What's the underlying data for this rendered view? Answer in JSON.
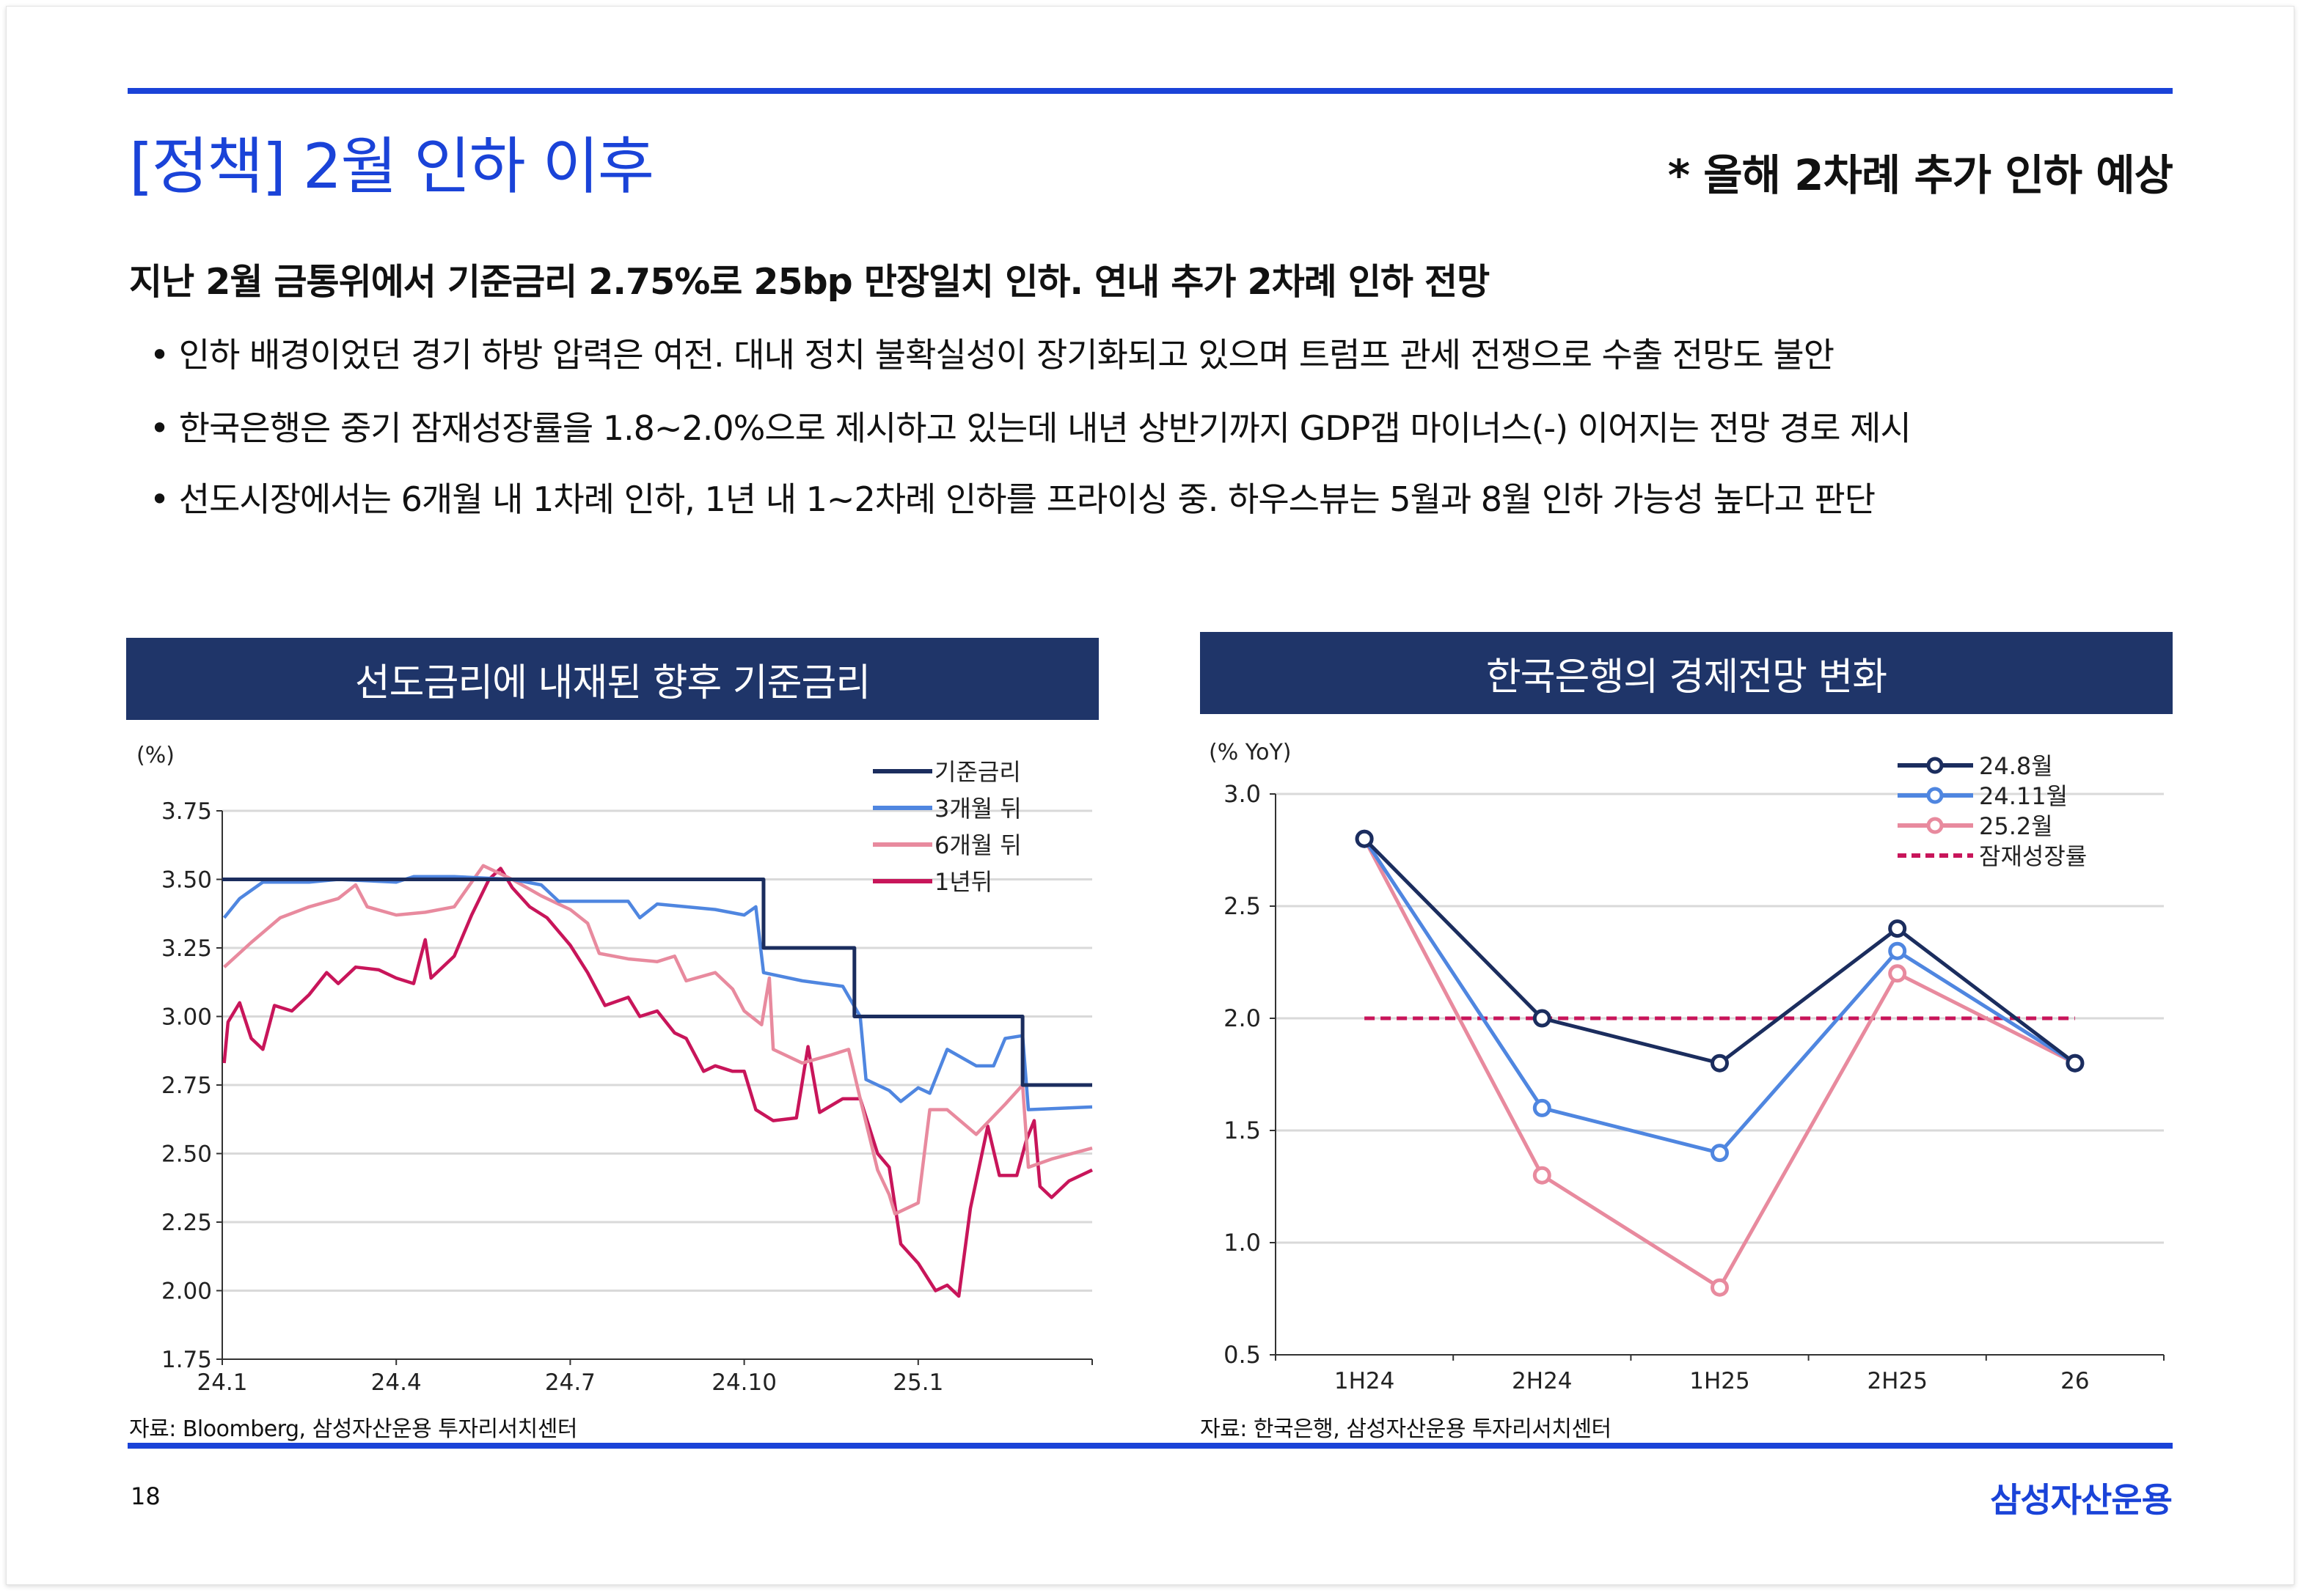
{
  "header": {
    "title": "[정책] 2월 인하 이후",
    "note": "* 올해 2차례 추가 인하 예상"
  },
  "body": {
    "lead": "지난 2월 금통위에서 기준금리 2.75%로 25bp 만장일치 인하. 연내 추가 2차례 인하 전망",
    "bullets": [
      "• 인하 배경이었던 경기 하방 압력은 여전. 대내 정치 불확실성이 장기화되고 있으며 트럼프 관세 전쟁으로 수출 전망도 불안",
      "• 한국은행은 중기 잠재성장률을 1.8~2.0%으로 제시하고 있는데 내년 상반기까지 GDP갭 마이너스(-) 이어지는 전망 경로 제시",
      "• 선도시장에서는 6개월 내 1차례 인하, 1년 내 1~2차례 인하를 프라이싱 중. 하우스뷰는 5월과 8월 인하 가능성 높다고 판단"
    ]
  },
  "footer": {
    "page": "18",
    "brand": "삼성자산운용"
  },
  "colors": {
    "accent": "#1a43d8",
    "header_box": "#1f3569",
    "navy": "#1b2d5e",
    "blue": "#4f86e0",
    "pink": "#e88a9e",
    "crimson": "#c8155a"
  },
  "chart_data": [
    {
      "type": "line",
      "title": "선도금리에 내재된 향후 기준금리",
      "ylabel": "(%)",
      "source": "자료: Bloomberg, 삼성자산운용 투자리서치센터",
      "ylim": [
        1.75,
        3.75
      ],
      "yticks": [
        "3.75",
        "3.50",
        "3.25",
        "3.00",
        "2.75",
        "2.50",
        "2.25",
        "2.00",
        "1.75"
      ],
      "xlim": [
        "2024-01-01",
        "2025-04-01"
      ],
      "xticks": [
        [
          "2024-01-01",
          "24.1"
        ],
        [
          "2024-04-01",
          "24.4"
        ],
        [
          "2024-07-01",
          "24.7"
        ],
        [
          "2024-10-01",
          "24.10"
        ],
        [
          "2025-01-01",
          "25.1"
        ]
      ],
      "grid": true,
      "legend": "top-right",
      "series": [
        {
          "name": "기준금리",
          "color": "#1b2d5e",
          "step": true,
          "points": [
            [
              "2024-01-01",
              3.5
            ],
            [
              "2024-10-11",
              3.25
            ],
            [
              "2024-11-28",
              3.0
            ],
            [
              "2025-02-25",
              2.75
            ],
            [
              "2025-04-01",
              2.75
            ]
          ]
        },
        {
          "name": "3개월 뒤",
          "color": "#4f86e0",
          "points": [
            [
              "2024-01-02",
              3.36
            ],
            [
              "2024-01-10",
              3.43
            ],
            [
              "2024-01-22",
              3.49
            ],
            [
              "2024-02-16",
              3.49
            ],
            [
              "2024-03-01",
              3.5
            ],
            [
              "2024-04-01",
              3.49
            ],
            [
              "2024-04-10",
              3.51
            ],
            [
              "2024-05-01",
              3.51
            ],
            [
              "2024-06-01",
              3.5
            ],
            [
              "2024-06-16",
              3.48
            ],
            [
              "2024-06-25",
              3.42
            ],
            [
              "2024-07-16",
              3.42
            ],
            [
              "2024-08-01",
              3.42
            ],
            [
              "2024-08-07",
              3.36
            ],
            [
              "2024-08-16",
              3.41
            ],
            [
              "2024-09-01",
              3.4
            ],
            [
              "2024-09-16",
              3.39
            ],
            [
              "2024-10-01",
              3.37
            ],
            [
              "2024-10-07",
              3.4
            ],
            [
              "2024-10-11",
              3.16
            ],
            [
              "2024-11-01",
              3.13
            ],
            [
              "2024-11-22",
              3.11
            ],
            [
              "2024-12-01",
              3.0
            ],
            [
              "2024-12-04",
              2.77
            ],
            [
              "2024-12-16",
              2.73
            ],
            [
              "2024-12-22",
              2.69
            ],
            [
              "2025-01-01",
              2.74
            ],
            [
              "2025-01-07",
              2.72
            ],
            [
              "2025-01-16",
              2.88
            ],
            [
              "2025-02-01",
              2.82
            ],
            [
              "2025-02-10",
              2.82
            ],
            [
              "2025-02-16",
              2.92
            ],
            [
              "2025-02-25",
              2.93
            ],
            [
              "2025-02-28",
              2.66
            ],
            [
              "2025-04-01",
              2.67
            ]
          ]
        },
        {
          "name": "6개월 뒤",
          "color": "#e88a9e",
          "points": [
            [
              "2024-01-02",
              3.18
            ],
            [
              "2024-01-16",
              3.27
            ],
            [
              "2024-02-01",
              3.36
            ],
            [
              "2024-02-16",
              3.4
            ],
            [
              "2024-03-01",
              3.43
            ],
            [
              "2024-03-10",
              3.48
            ],
            [
              "2024-03-16",
              3.4
            ],
            [
              "2024-04-01",
              3.37
            ],
            [
              "2024-04-16",
              3.38
            ],
            [
              "2024-05-01",
              3.4
            ],
            [
              "2024-05-16",
              3.55
            ],
            [
              "2024-06-01",
              3.5
            ],
            [
              "2024-06-16",
              3.44
            ],
            [
              "2024-07-01",
              3.39
            ],
            [
              "2024-07-10",
              3.34
            ],
            [
              "2024-07-16",
              3.23
            ],
            [
              "2024-08-01",
              3.21
            ],
            [
              "2024-08-16",
              3.2
            ],
            [
              "2024-08-25",
              3.22
            ],
            [
              "2024-09-01",
              3.13
            ],
            [
              "2024-09-16",
              3.16
            ],
            [
              "2024-09-25",
              3.1
            ],
            [
              "2024-10-01",
              3.02
            ],
            [
              "2024-10-10",
              2.97
            ],
            [
              "2024-10-14",
              3.14
            ],
            [
              "2024-10-16",
              2.88
            ],
            [
              "2024-11-01",
              2.83
            ],
            [
              "2024-11-16",
              2.86
            ],
            [
              "2024-11-25",
              2.88
            ],
            [
              "2024-12-01",
              2.7
            ],
            [
              "2024-12-10",
              2.44
            ],
            [
              "2024-12-16",
              2.35
            ],
            [
              "2024-12-19",
              2.28
            ],
            [
              "2025-01-01",
              2.32
            ],
            [
              "2025-01-07",
              2.66
            ],
            [
              "2025-01-16",
              2.66
            ],
            [
              "2025-02-01",
              2.57
            ],
            [
              "2025-02-16",
              2.68
            ],
            [
              "2025-02-25",
              2.75
            ],
            [
              "2025-02-28",
              2.45
            ],
            [
              "2025-03-10",
              2.48
            ],
            [
              "2025-04-01",
              2.52
            ]
          ]
        },
        {
          "name": "1년뒤",
          "color": "#c8155a",
          "points": [
            [
              "2024-01-02",
              2.83
            ],
            [
              "2024-01-04",
              2.98
            ],
            [
              "2024-01-10",
              3.05
            ],
            [
              "2024-01-16",
              2.92
            ],
            [
              "2024-01-22",
              2.88
            ],
            [
              "2024-01-28",
              3.04
            ],
            [
              "2024-02-07",
              3.02
            ],
            [
              "2024-02-16",
              3.08
            ],
            [
              "2024-02-25",
              3.16
            ],
            [
              "2024-03-01",
              3.12
            ],
            [
              "2024-03-10",
              3.18
            ],
            [
              "2024-03-22",
              3.17
            ],
            [
              "2024-04-01",
              3.14
            ],
            [
              "2024-04-10",
              3.12
            ],
            [
              "2024-04-16",
              3.28
            ],
            [
              "2024-04-19",
              3.14
            ],
            [
              "2024-05-01",
              3.22
            ],
            [
              "2024-05-10",
              3.37
            ],
            [
              "2024-05-19",
              3.5
            ],
            [
              "2024-05-25",
              3.54
            ],
            [
              "2024-06-01",
              3.47
            ],
            [
              "2024-06-10",
              3.4
            ],
            [
              "2024-06-19",
              3.36
            ],
            [
              "2024-07-01",
              3.26
            ],
            [
              "2024-07-10",
              3.16
            ],
            [
              "2024-07-19",
              3.04
            ],
            [
              "2024-08-01",
              3.07
            ],
            [
              "2024-08-07",
              3.0
            ],
            [
              "2024-08-16",
              3.02
            ],
            [
              "2024-08-25",
              2.94
            ],
            [
              "2024-09-01",
              2.92
            ],
            [
              "2024-09-10",
              2.8
            ],
            [
              "2024-09-16",
              2.82
            ],
            [
              "2024-09-25",
              2.8
            ],
            [
              "2024-10-01",
              2.8
            ],
            [
              "2024-10-07",
              2.66
            ],
            [
              "2024-10-16",
              2.62
            ],
            [
              "2024-10-28",
              2.63
            ],
            [
              "2024-11-04",
              2.89
            ],
            [
              "2024-11-10",
              2.65
            ],
            [
              "2024-11-22",
              2.7
            ],
            [
              "2024-12-01",
              2.7
            ],
            [
              "2024-12-10",
              2.5
            ],
            [
              "2024-12-16",
              2.45
            ],
            [
              "2024-12-22",
              2.17
            ],
            [
              "2025-01-01",
              2.1
            ],
            [
              "2025-01-10",
              2.0
            ],
            [
              "2025-01-16",
              2.02
            ],
            [
              "2025-01-22",
              1.98
            ],
            [
              "2025-01-28",
              2.3
            ],
            [
              "2025-02-07",
              2.6
            ],
            [
              "2025-02-13",
              2.42
            ],
            [
              "2025-02-22",
              2.42
            ],
            [
              "2025-02-27",
              2.55
            ],
            [
              "2025-03-01",
              2.62
            ],
            [
              "2025-03-04",
              2.38
            ],
            [
              "2025-03-10",
              2.34
            ],
            [
              "2025-03-19",
              2.4
            ],
            [
              "2025-04-01",
              2.44
            ]
          ]
        }
      ]
    },
    {
      "type": "line",
      "title": "한국은행의 경제전망 변화",
      "ylabel": "(% YoY)",
      "source": "자료: 한국은행, 삼성자산운용 투자리서치센터",
      "ylim": [
        0.5,
        3.0
      ],
      "yticks": [
        "3.0",
        "2.5",
        "2.0",
        "1.5",
        "1.0",
        "0.5"
      ],
      "categories": [
        "1H24",
        "2H24",
        "1H25",
        "2H25",
        "26"
      ],
      "grid": true,
      "legend": "top-right",
      "series": [
        {
          "name": "24.8월",
          "color": "#1b2d5e",
          "values": [
            2.8,
            2.0,
            1.8,
            2.4,
            1.8
          ]
        },
        {
          "name": "24.11월",
          "color": "#4f86e0",
          "values": [
            2.8,
            1.6,
            1.4,
            2.3,
            1.8
          ]
        },
        {
          "name": "25.2월",
          "color": "#e88a9e",
          "values": [
            2.8,
            1.3,
            0.8,
            2.2,
            1.8
          ]
        },
        {
          "name": "잠재성장률",
          "color": "#c8155a",
          "dashed": true,
          "values": [
            2.0,
            2.0,
            2.0,
            2.0,
            2.0
          ]
        }
      ]
    }
  ]
}
